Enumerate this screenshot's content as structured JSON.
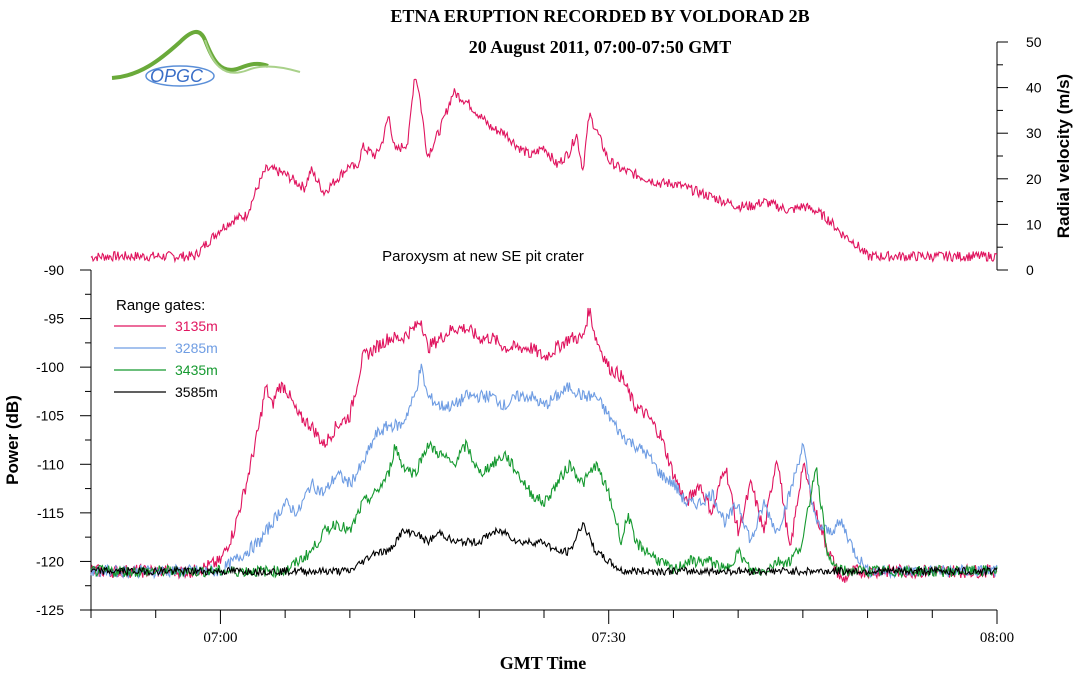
{
  "header": {
    "title_line1": "ETNA ERUPTION RECORDED BY VOLDORAD 2B",
    "title_line2": "20 August 2011, 07:00-07:50 GMT",
    "logo_text": "OPGC"
  },
  "colors": {
    "g3135": "#e0155f",
    "g3285": "#6f9de3",
    "g3435": "#15992f",
    "g3585": "#000000"
  },
  "chart_data": [
    {
      "type": "line",
      "title": "ETNA ERUPTION RECORDED BY VOLDORAD 2B",
      "subtitle": "20 August 2011, 07:00-07:50 GMT",
      "xlabel": "",
      "ylabel": "Radial velocity (m/s)",
      "y_axis_side": "right",
      "ylim": [
        0,
        50
      ],
      "yticks": [
        "0",
        "10",
        "20",
        "30",
        "40",
        "50"
      ],
      "xlim_minutes": [
        -10,
        60
      ],
      "grid": false,
      "series": [
        {
          "name": "",
          "color": "#e0155f",
          "x": [
            -10,
            -9,
            -8,
            -5,
            -2,
            0,
            1,
            2,
            3,
            3.5,
            4,
            5,
            6,
            6.5,
            7,
            8,
            9,
            10,
            10.5,
            11,
            12,
            12.5,
            13,
            13.5,
            14,
            14.5,
            15,
            15.3,
            16,
            17,
            18,
            19,
            20,
            21,
            22,
            23,
            24,
            25,
            26,
            27,
            27.5,
            28,
            28.5,
            29,
            30,
            31,
            32,
            33,
            34,
            35,
            36,
            37,
            38,
            39,
            40,
            41,
            42,
            43,
            44,
            45,
            46,
            47,
            48,
            49,
            50,
            52,
            55,
            60
          ],
          "values": [
            2.8,
            3,
            3,
            3,
            3,
            9,
            11,
            12,
            19,
            22,
            22,
            21,
            19,
            18,
            22,
            17,
            20,
            23,
            22,
            27,
            25,
            28,
            34,
            26,
            27,
            28,
            43,
            40,
            25,
            31,
            39,
            37,
            34,
            31,
            30,
            27,
            25,
            27,
            23,
            26,
            30,
            22,
            34,
            31,
            24,
            22,
            21,
            20,
            19,
            19,
            18,
            17,
            16,
            15,
            14,
            14,
            15,
            14,
            13,
            14,
            13,
            11,
            8,
            6,
            3,
            3,
            3,
            3
          ]
        }
      ]
    },
    {
      "type": "line",
      "title": "Paroxysm at new SE pit crater",
      "xlabel": "GMT Time",
      "ylabel": "Power (dB)",
      "ylim": [
        -125,
        -90
      ],
      "yticks": [
        "-125",
        "-120",
        "-115",
        "-110",
        "-105",
        "-100",
        "-95",
        "-90"
      ],
      "xlim_minutes": [
        -10,
        60
      ],
      "xticks": [
        {
          "minute": 0,
          "label": "07:00"
        },
        {
          "minute": 30,
          "label": "07:30"
        },
        {
          "minute": 60,
          "label": "08:00"
        }
      ],
      "legend": {
        "title": "Range gates:",
        "placement": "top-left"
      },
      "grid": false,
      "series": [
        {
          "name": "3135m",
          "color": "#e0155f",
          "x": [
            -10,
            -8,
            -6,
            -4,
            -2,
            0,
            1,
            2,
            3,
            3.5,
            4,
            4.5,
            5,
            6,
            7,
            8,
            9,
            10,
            11,
            12,
            13,
            14,
            15,
            15.5,
            16,
            17,
            18,
            19,
            20,
            21,
            22,
            23,
            24,
            25,
            26,
            27,
            28,
            28.5,
            29,
            30,
            31,
            32,
            33,
            34,
            35,
            36,
            37,
            38,
            39,
            40,
            41,
            42,
            43,
            44,
            45,
            46,
            47,
            48,
            49,
            50,
            52,
            55,
            58,
            60
          ],
          "values": [
            -121,
            -121,
            -121,
            -121,
            -121,
            -120,
            -117,
            -112,
            -106,
            -102,
            -104,
            -102,
            -102,
            -105,
            -106,
            -108,
            -106,
            -105,
            -99,
            -98,
            -97,
            -97,
            -96,
            -95,
            -98,
            -97,
            -96,
            -96,
            -97,
            -97,
            -98,
            -98,
            -98,
            -99,
            -98,
            -97,
            -97,
            -94,
            -97,
            -100,
            -101,
            -104,
            -105,
            -107,
            -111,
            -114,
            -112,
            -115,
            -110,
            -117,
            -112,
            -117,
            -109,
            -119,
            -110,
            -115,
            -119,
            -122,
            -121,
            -121,
            -121,
            -121,
            -121,
            -121
          ]
        },
        {
          "name": "3285m",
          "color": "#6f9de3",
          "x": [
            -10,
            -8,
            -6,
            -4,
            -2,
            0,
            1,
            2,
            3,
            4,
            5,
            6,
            7,
            8,
            9,
            10,
            11,
            12,
            13,
            14,
            15,
            15.5,
            16,
            17,
            18,
            19,
            20,
            21,
            22,
            23,
            24,
            25,
            26,
            27,
            28,
            29,
            30,
            31,
            32,
            33,
            34,
            35,
            36,
            37,
            38,
            39,
            40,
            41,
            42,
            43,
            44,
            45,
            46,
            47,
            48,
            49,
            50,
            52,
            55,
            58,
            60
          ],
          "values": [
            -121,
            -121,
            -121,
            -121,
            -121,
            -121,
            -120,
            -119,
            -118,
            -116,
            -114,
            -115,
            -112,
            -113,
            -111,
            -112,
            -110,
            -107,
            -106,
            -106,
            -103,
            -100,
            -103,
            -104,
            -104,
            -103,
            -103,
            -103,
            -104,
            -103,
            -103,
            -104,
            -103,
            -102,
            -103,
            -103,
            -105,
            -107,
            -108,
            -109,
            -111,
            -112,
            -114,
            -114,
            -113,
            -116,
            -114,
            -118,
            -114,
            -117,
            -113,
            -108,
            -116,
            -117,
            -116,
            -119,
            -121,
            -121,
            -121,
            -121,
            -121
          ]
        },
        {
          "name": "3435m",
          "color": "#15992f",
          "x": [
            -10,
            -8,
            -6,
            -4,
            -2,
            0,
            2,
            4,
            5,
            6,
            7,
            8,
            9,
            10,
            11,
            12,
            13,
            13.5,
            14,
            15,
            16,
            17,
            18,
            19,
            20,
            21,
            22,
            23,
            24,
            25,
            26,
            27,
            28,
            29,
            30,
            31,
            31.5,
            32,
            33,
            34,
            35,
            36,
            37,
            38,
            39,
            40,
            41,
            42,
            43,
            44,
            45,
            46,
            47,
            48,
            50,
            52,
            55,
            58,
            60
          ],
          "values": [
            -121,
            -121,
            -121,
            -121,
            -121,
            -121,
            -121,
            -121,
            -121,
            -120,
            -119,
            -117,
            -116,
            -117,
            -114,
            -113,
            -111,
            -108,
            -110,
            -111,
            -108,
            -109,
            -110,
            -108,
            -111,
            -110,
            -109,
            -111,
            -113,
            -114,
            -112,
            -110,
            -112,
            -110,
            -113,
            -118,
            -115,
            -118,
            -119,
            -120,
            -121,
            -120,
            -120,
            -120,
            -121,
            -119,
            -121,
            -121,
            -120,
            -120,
            -118,
            -110,
            -120,
            -121,
            -121,
            -121,
            -121,
            -121,
            -121
          ]
        },
        {
          "name": "3585m",
          "color": "#000000",
          "x": [
            -10,
            -8,
            -6,
            -4,
            -2,
            0,
            2,
            4,
            6,
            8,
            10,
            11,
            12,
            13,
            14,
            15,
            16,
            17,
            18,
            19,
            20,
            21,
            22,
            23,
            24,
            25,
            26,
            27,
            28,
            29,
            30,
            31,
            32,
            34,
            36,
            38,
            40,
            42,
            44,
            46,
            48,
            50,
            52,
            55,
            58,
            60
          ],
          "values": [
            -121,
            -121,
            -121,
            -121,
            -121,
            -121,
            -121,
            -121,
            -121,
            -121,
            -121,
            -120,
            -119,
            -119,
            -117,
            -117,
            -118,
            -117,
            -118,
            -118,
            -118,
            -117,
            -117,
            -118,
            -118,
            -118,
            -119,
            -119,
            -116,
            -119,
            -120,
            -121,
            -121,
            -121,
            -121,
            -121,
            -121,
            -121,
            -121,
            -121,
            -121,
            -121,
            -121,
            -121,
            -121,
            -121
          ]
        }
      ]
    }
  ]
}
